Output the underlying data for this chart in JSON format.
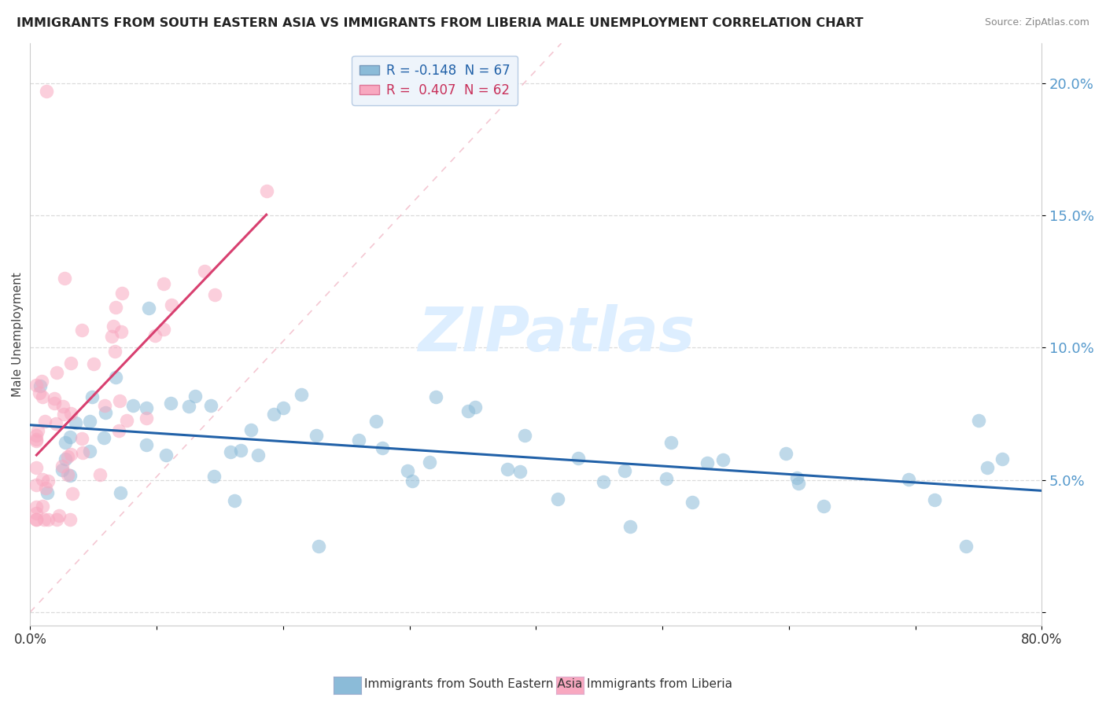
{
  "title": "IMMIGRANTS FROM SOUTH EASTERN ASIA VS IMMIGRANTS FROM LIBERIA MALE UNEMPLOYMENT CORRELATION CHART",
  "source": "Source: ZipAtlas.com",
  "ylabel": "Male Unemployment",
  "xlim": [
    0.0,
    0.8
  ],
  "ylim": [
    -0.005,
    0.215
  ],
  "y_ticks": [
    0.0,
    0.05,
    0.1,
    0.15,
    0.2
  ],
  "y_tick_labels": [
    "",
    "5.0%",
    "10.0%",
    "15.0%",
    "20.0%"
  ],
  "x_ticks": [
    0.0,
    0.1,
    0.2,
    0.3,
    0.4,
    0.5,
    0.6,
    0.7,
    0.8
  ],
  "legend_label1": "R = -0.148  N = 67",
  "legend_label2": "R =  0.407  N = 62",
  "series1_color": "#8bbbd8",
  "series2_color": "#f8a8c0",
  "trendline1_color": "#2161a8",
  "trendline2_color": "#d84070",
  "diag_color": "#dddddd",
  "background_color": "#ffffff",
  "legend_box_color": "#eef4fb",
  "legend_edge_color": "#b8cce4",
  "legend_text1_color": "#2161a8",
  "legend_text2_color": "#c8305a",
  "ytick_color": "#5599cc",
  "series1_name": "Immigrants from South Eastern Asia",
  "series2_name": "Immigrants from Liberia",
  "watermark": "ZIPatlas",
  "watermark_color": "#ddeeff",
  "series1_seed": 42,
  "series2_seed": 99
}
